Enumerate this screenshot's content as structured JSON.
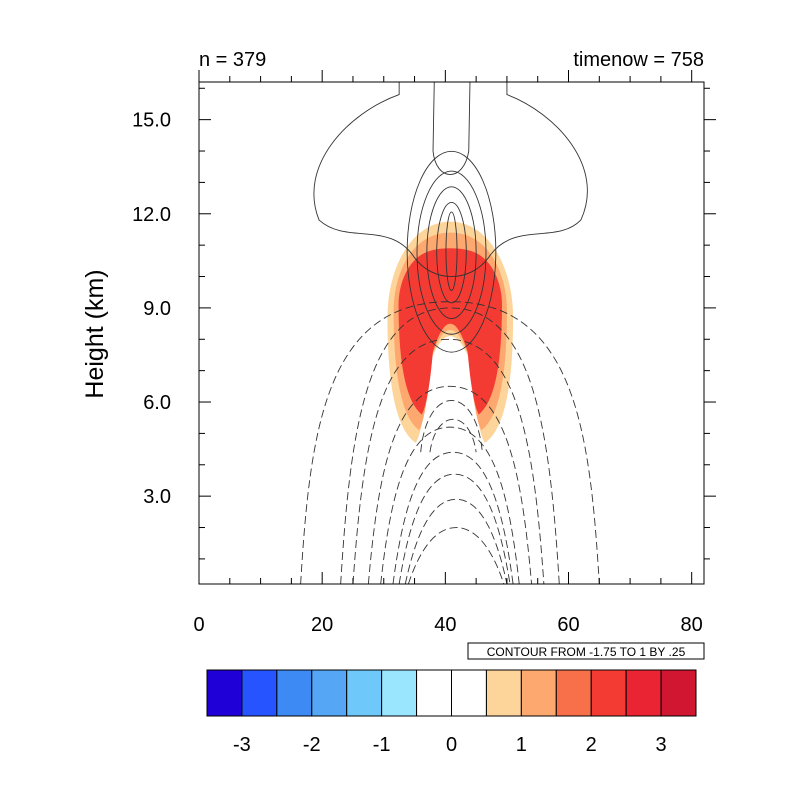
{
  "chart_data": {
    "type": "contour",
    "title_left": "n = 379",
    "title_right": "timenow = 758",
    "ylabel": "Height (km)",
    "xlabel": "",
    "xlim": [
      0,
      82
    ],
    "ylim": [
      0.2,
      16.2
    ],
    "x_ticks": [
      0,
      20,
      40,
      60,
      80
    ],
    "x_tick_labels": [
      "0",
      "20",
      "40",
      "60",
      "80"
    ],
    "y_ticks": [
      3.0,
      6.0,
      9.0,
      12.0,
      15.0
    ],
    "y_tick_labels": [
      "3.0",
      "6.0",
      "9.0",
      "12.0",
      "15.0"
    ],
    "contour_info": "CONTOUR FROM -1.75 TO 1 BY .25",
    "colorbar": {
      "colors": [
        "#1f00d6",
        "#2655ff",
        "#3d8af5",
        "#55a6f5",
        "#6ec8fa",
        "#9ae6ff",
        "#ffffff",
        "#ffffff",
        "#fdd49a",
        "#fca86f",
        "#f8704a",
        "#f43b33",
        "#ea2433",
        "#d11632"
      ],
      "tick_values": [
        -3,
        -2,
        -1,
        0,
        1,
        2,
        3
      ],
      "tick_labels": [
        "-3",
        "-2",
        "-1",
        "0",
        "1",
        "2",
        "3"
      ]
    },
    "filled_regions": [
      {
        "level": 1,
        "color": "#fdd49a",
        "cx": 40.8,
        "cy": 8.7,
        "rx": 10.2,
        "ry": 3.1,
        "lo": 4.7,
        "hi": 11.75
      },
      {
        "level": 1.5,
        "color": "#fca86f",
        "cx": 40.8,
        "cy": 8.9,
        "rx": 9.2,
        "ry": 2.6,
        "lo": 5.1,
        "hi": 11.4
      },
      {
        "level": 2.5,
        "color": "#f43b33",
        "cx": 40.8,
        "cy": 9.1,
        "rx": 8.4,
        "ry": 2.0,
        "lo": 5.6,
        "hi": 10.9
      }
    ]
  }
}
